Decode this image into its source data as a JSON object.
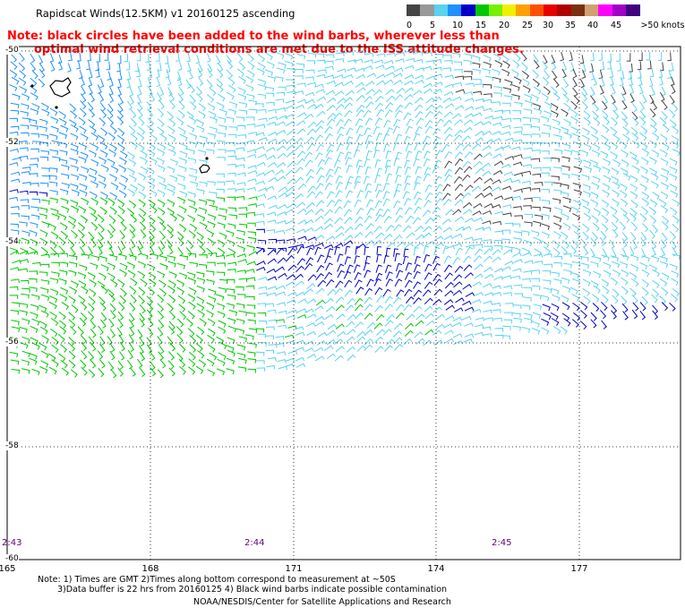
{
  "title": "Rapidscat Winds(12.5KM) v1 20160125 ascending",
  "note_line1": "Note: black circles have been added to the wind barbs, wherever less than",
  "note_line2": "optimal wind retrieval conditions are met due to the ISS attitude changes.",
  "scale": {
    "colors": [
      "#444444",
      "#999999",
      "#5ad2f0",
      "#1e90ff",
      "#0000c8",
      "#00c800",
      "#78f000",
      "#f0f000",
      "#ffa000",
      "#ff5000",
      "#e80000",
      "#b00000",
      "#7a3010",
      "#d0a070",
      "#ff00ff",
      "#a000c8",
      "#400080"
    ],
    "labels": [
      "0",
      "5",
      "10",
      "15",
      "20",
      "25",
      "30",
      "35",
      "40",
      "45",
      ">50 knots"
    ]
  },
  "lat_labels": [
    "-50",
    "-52",
    "-54",
    "-56",
    "-58",
    "-60"
  ],
  "lon_labels": [
    "165",
    "168",
    "171",
    "174",
    "177"
  ],
  "time_labels": [
    "2:43",
    "2:44",
    "2:45"
  ],
  "footnote_line1": "Note: 1) Times are GMT 2)Times along bottom correspond to measurement at ~50S",
  "footnote_line2": "3)Data buffer is 22 hrs from 20160125 4) Black wind barbs indicate possible contamination",
  "credit": "NOAA/NESDIS/Center for Satellite Applications and Research"
}
